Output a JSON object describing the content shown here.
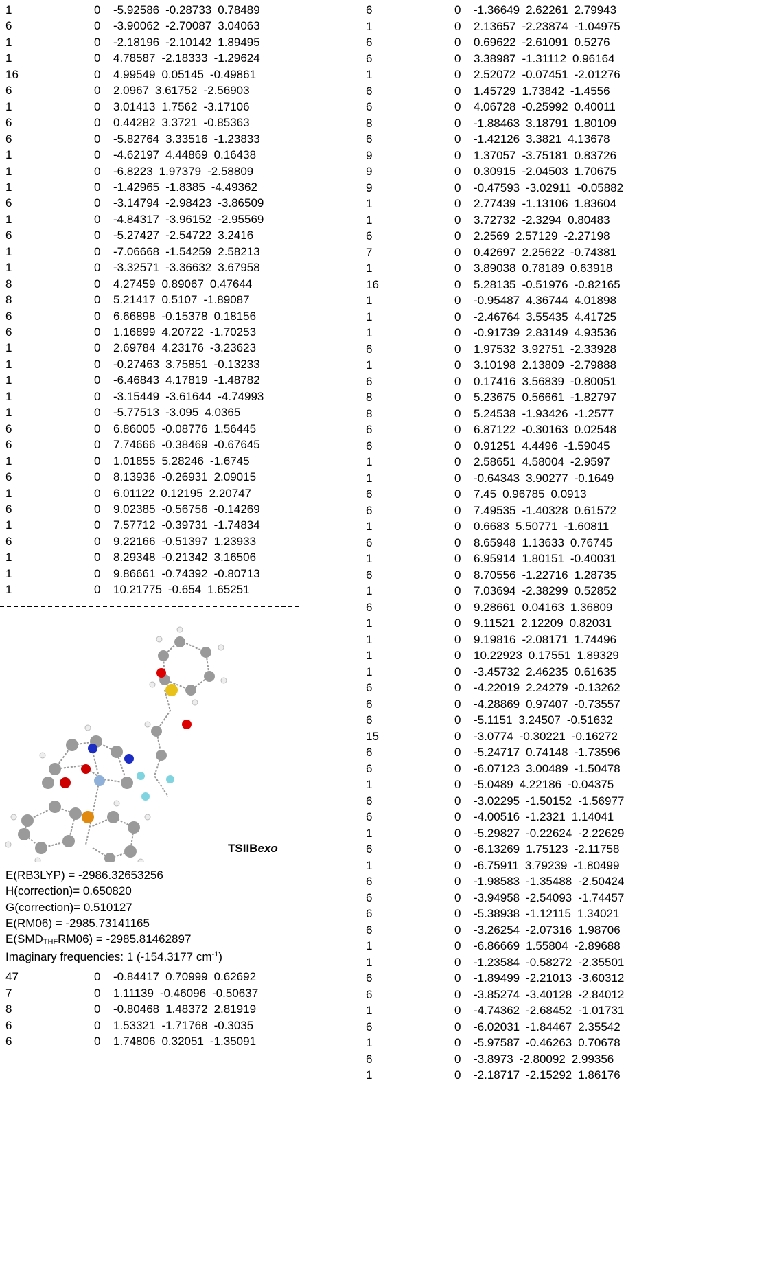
{
  "left_table": {
    "rows": [
      [
        1,
        0,
        -5.92586,
        -0.28733,
        0.78489
      ],
      [
        6,
        0,
        -3.90062,
        -2.70087,
        3.04063
      ],
      [
        1,
        0,
        -2.18196,
        -2.10142,
        1.89495
      ],
      [
        1,
        0,
        4.78587,
        -2.18333,
        -1.29624
      ],
      [
        16,
        0,
        4.99549,
        0.05145,
        -0.49861
      ],
      [
        6,
        0,
        2.0967,
        3.61752,
        -2.56903
      ],
      [
        1,
        0,
        3.01413,
        1.7562,
        -3.17106
      ],
      [
        6,
        0,
        0.44282,
        3.3721,
        -0.85363
      ],
      [
        6,
        0,
        -5.82764,
        3.33516,
        -1.23833
      ],
      [
        1,
        0,
        -4.62197,
        4.44869,
        0.16438
      ],
      [
        1,
        0,
        -6.8223,
        1.97379,
        -2.58809
      ],
      [
        1,
        0,
        -1.42965,
        -1.8385,
        -4.49362
      ],
      [
        6,
        0,
        -3.14794,
        -2.98423,
        -3.86509
      ],
      [
        1,
        0,
        -4.84317,
        -3.96152,
        -2.95569
      ],
      [
        6,
        0,
        -5.27427,
        -2.54722,
        3.2416
      ],
      [
        1,
        0,
        -7.06668,
        -1.54259,
        2.58213
      ],
      [
        1,
        0,
        -3.32571,
        -3.36632,
        3.67958
      ],
      [
        8,
        0,
        4.27459,
        0.89067,
        0.47644
      ],
      [
        8,
        0,
        5.21417,
        0.5107,
        -1.89087
      ],
      [
        6,
        0,
        6.66898,
        -0.15378,
        0.18156
      ],
      [
        6,
        0,
        1.16899,
        4.20722,
        -1.70253
      ],
      [
        1,
        0,
        2.69784,
        4.23176,
        -3.23623
      ],
      [
        1,
        0,
        -0.27463,
        3.75851,
        -0.13233
      ],
      [
        1,
        0,
        -6.46843,
        4.17819,
        -1.48782
      ],
      [
        1,
        0,
        -3.15449,
        -3.61644,
        -4.74993
      ],
      [
        1,
        0,
        -5.77513,
        -3.095,
        4.0365
      ],
      [
        6,
        0,
        6.86005,
        -0.08776,
        1.56445
      ],
      [
        6,
        0,
        7.74666,
        -0.38469,
        -0.67645
      ],
      [
        1,
        0,
        1.01855,
        5.28246,
        -1.6745
      ],
      [
        6,
        0,
        8.13936,
        -0.26931,
        2.09015
      ],
      [
        1,
        0,
        6.01122,
        0.12195,
        2.20747
      ],
      [
        6,
        0,
        9.02385,
        -0.56756,
        -0.14269
      ],
      [
        1,
        0,
        7.57712,
        -0.39731,
        -1.74834
      ],
      [
        6,
        0,
        9.22166,
        -0.51397,
        1.23933
      ],
      [
        1,
        0,
        8.29348,
        -0.21342,
        3.16506
      ],
      [
        1,
        0,
        9.86661,
        -0.74392,
        -0.80713
      ],
      [
        1,
        0,
        10.21775,
        -0.654,
        1.65251
      ]
    ]
  },
  "structure_label": {
    "prefix": "TSIIB",
    "italic": "exo"
  },
  "energies": [
    "E(RB3LYP) =  -2986.32653256",
    "H(correction)=  0.650820",
    "G(correction)=  0.510127",
    "E(RM06) = -2985.73141165"
  ],
  "solvation": {
    "prefix": "E(SMD",
    "subscript": "THF",
    "suffix": "RM06) = -2985.81462897"
  },
  "frequencies": {
    "text": "Imaginary frequencies: 1 (-154.3177 cm",
    "superscript": "-1",
    "close": ")"
  },
  "bottom_table": {
    "rows": [
      [
        47,
        0,
        -0.84417,
        0.70999,
        0.62692
      ],
      [
        7,
        0,
        1.11139,
        -0.46096,
        -0.50637
      ],
      [
        8,
        0,
        -0.80468,
        1.48372,
        2.81919
      ],
      [
        6,
        0,
        1.53321,
        -1.71768,
        -0.3035
      ],
      [
        6,
        0,
        1.74806,
        0.32051,
        -1.35091
      ]
    ]
  },
  "right_table": {
    "rows": [
      [
        6,
        0,
        -1.36649,
        2.62261,
        2.79943
      ],
      [
        1,
        0,
        2.13657,
        -2.23874,
        -1.04975
      ],
      [
        6,
        0,
        0.69622,
        -2.61091,
        0.5276
      ],
      [
        6,
        0,
        3.38987,
        -1.31112,
        0.96164
      ],
      [
        1,
        0,
        2.52072,
        -0.07451,
        -2.01276
      ],
      [
        6,
        0,
        1.45729,
        1.73842,
        -1.4556
      ],
      [
        6,
        0,
        4.06728,
        -0.25992,
        0.40011
      ],
      [
        8,
        0,
        -1.88463,
        3.18791,
        1.80109
      ],
      [
        6,
        0,
        -1.42126,
        3.3821,
        4.13678
      ],
      [
        9,
        0,
        1.37057,
        -3.75181,
        0.83726
      ],
      [
        9,
        0,
        0.30915,
        -2.04503,
        1.70675
      ],
      [
        9,
        0,
        -0.47593,
        -3.02911,
        -0.05882
      ],
      [
        1,
        0,
        2.77439,
        -1.13106,
        1.83604
      ],
      [
        1,
        0,
        3.72732,
        -2.3294,
        0.80483
      ],
      [
        6,
        0,
        2.2569,
        2.57129,
        -2.27198
      ],
      [
        7,
        0,
        0.42697,
        2.25622,
        -0.74381
      ],
      [
        1,
        0,
        3.89038,
        0.78189,
        0.63918
      ],
      [
        16,
        0,
        5.28135,
        -0.51976,
        -0.82165
      ],
      [
        1,
        0,
        -0.95487,
        4.36744,
        4.01898
      ],
      [
        1,
        0,
        -2.46764,
        3.55435,
        4.41725
      ],
      [
        1,
        0,
        -0.91739,
        2.83149,
        4.93536
      ],
      [
        6,
        0,
        1.97532,
        3.92751,
        -2.33928
      ],
      [
        1,
        0,
        3.10198,
        2.13809,
        -2.79888
      ],
      [
        6,
        0,
        0.17416,
        3.56839,
        -0.80051
      ],
      [
        8,
        0,
        5.23675,
        0.56661,
        -1.82797
      ],
      [
        8,
        0,
        5.24538,
        -1.93426,
        -1.2577
      ],
      [
        6,
        0,
        6.87122,
        -0.30163,
        0.02548
      ],
      [
        6,
        0,
        0.91251,
        4.4496,
        -1.59045
      ],
      [
        1,
        0,
        2.58651,
        4.58004,
        -2.9597
      ],
      [
        1,
        0,
        -0.64343,
        3.90277,
        -0.1649
      ],
      [
        6,
        0,
        7.45,
        0.96785,
        0.0913
      ],
      [
        6,
        0,
        7.49535,
        -1.40328,
        0.61572
      ],
      [
        1,
        0,
        0.6683,
        5.50771,
        -1.60811
      ],
      [
        6,
        0,
        8.65948,
        1.13633,
        0.76745
      ],
      [
        1,
        0,
        6.95914,
        1.80151,
        -0.40031
      ],
      [
        6,
        0,
        8.70556,
        -1.22716,
        1.28735
      ],
      [
        1,
        0,
        7.03694,
        -2.38299,
        0.52852
      ],
      [
        6,
        0,
        9.28661,
        0.04163,
        1.36809
      ],
      [
        1,
        0,
        9.11521,
        2.12209,
        0.82031
      ],
      [
        1,
        0,
        9.19816,
        -2.08171,
        1.74496
      ],
      [
        1,
        0,
        10.22923,
        0.17551,
        1.89329
      ],
      [
        1,
        0,
        -3.45732,
        2.46235,
        0.61635
      ],
      [
        6,
        0,
        -4.22019,
        2.24279,
        -0.13262
      ],
      [
        6,
        0,
        -4.28869,
        0.97407,
        -0.73557
      ],
      [
        6,
        0,
        -5.1151,
        3.24507,
        -0.51632
      ],
      [
        15,
        0,
        -3.0774,
        -0.30221,
        -0.16272
      ],
      [
        6,
        0,
        -5.24717,
        0.74148,
        -1.73596
      ],
      [
        6,
        0,
        -6.07123,
        3.00489,
        -1.50478
      ],
      [
        1,
        0,
        -5.0489,
        4.22186,
        -0.04375
      ],
      [
        6,
        0,
        -3.02295,
        -1.50152,
        -1.56977
      ],
      [
        6,
        0,
        -4.00516,
        -1.2321,
        1.14041
      ],
      [
        1,
        0,
        -5.29827,
        -0.22624,
        -2.22629
      ],
      [
        6,
        0,
        -6.13269,
        1.75123,
        -2.11758
      ],
      [
        1,
        0,
        -6.75911,
        3.79239,
        -1.80499
      ],
      [
        6,
        0,
        -1.98583,
        -1.35488,
        -2.50424
      ],
      [
        6,
        0,
        -3.94958,
        -2.54093,
        -1.74457
      ],
      [
        6,
        0,
        -5.38938,
        -1.12115,
        1.34021
      ],
      [
        6,
        0,
        -3.26254,
        -2.07316,
        1.98706
      ],
      [
        1,
        0,
        -6.86669,
        1.55804,
        -2.89688
      ],
      [
        1,
        0,
        -1.23584,
        -0.58272,
        -2.35501
      ],
      [
        6,
        0,
        -1.89499,
        -2.21013,
        -3.60312
      ],
      [
        6,
        0,
        -3.85274,
        -3.40128,
        -2.84012
      ],
      [
        1,
        0,
        -4.74362,
        -2.68452,
        -1.01731
      ],
      [
        6,
        0,
        -6.02031,
        -1.84467,
        2.35542
      ],
      [
        1,
        0,
        -5.97587,
        -0.46263,
        0.70678
      ],
      [
        6,
        0,
        -3.8973,
        -2.80092,
        2.99356
      ],
      [
        1,
        0,
        -2.18717,
        -2.15292,
        1.86176
      ]
    ]
  }
}
